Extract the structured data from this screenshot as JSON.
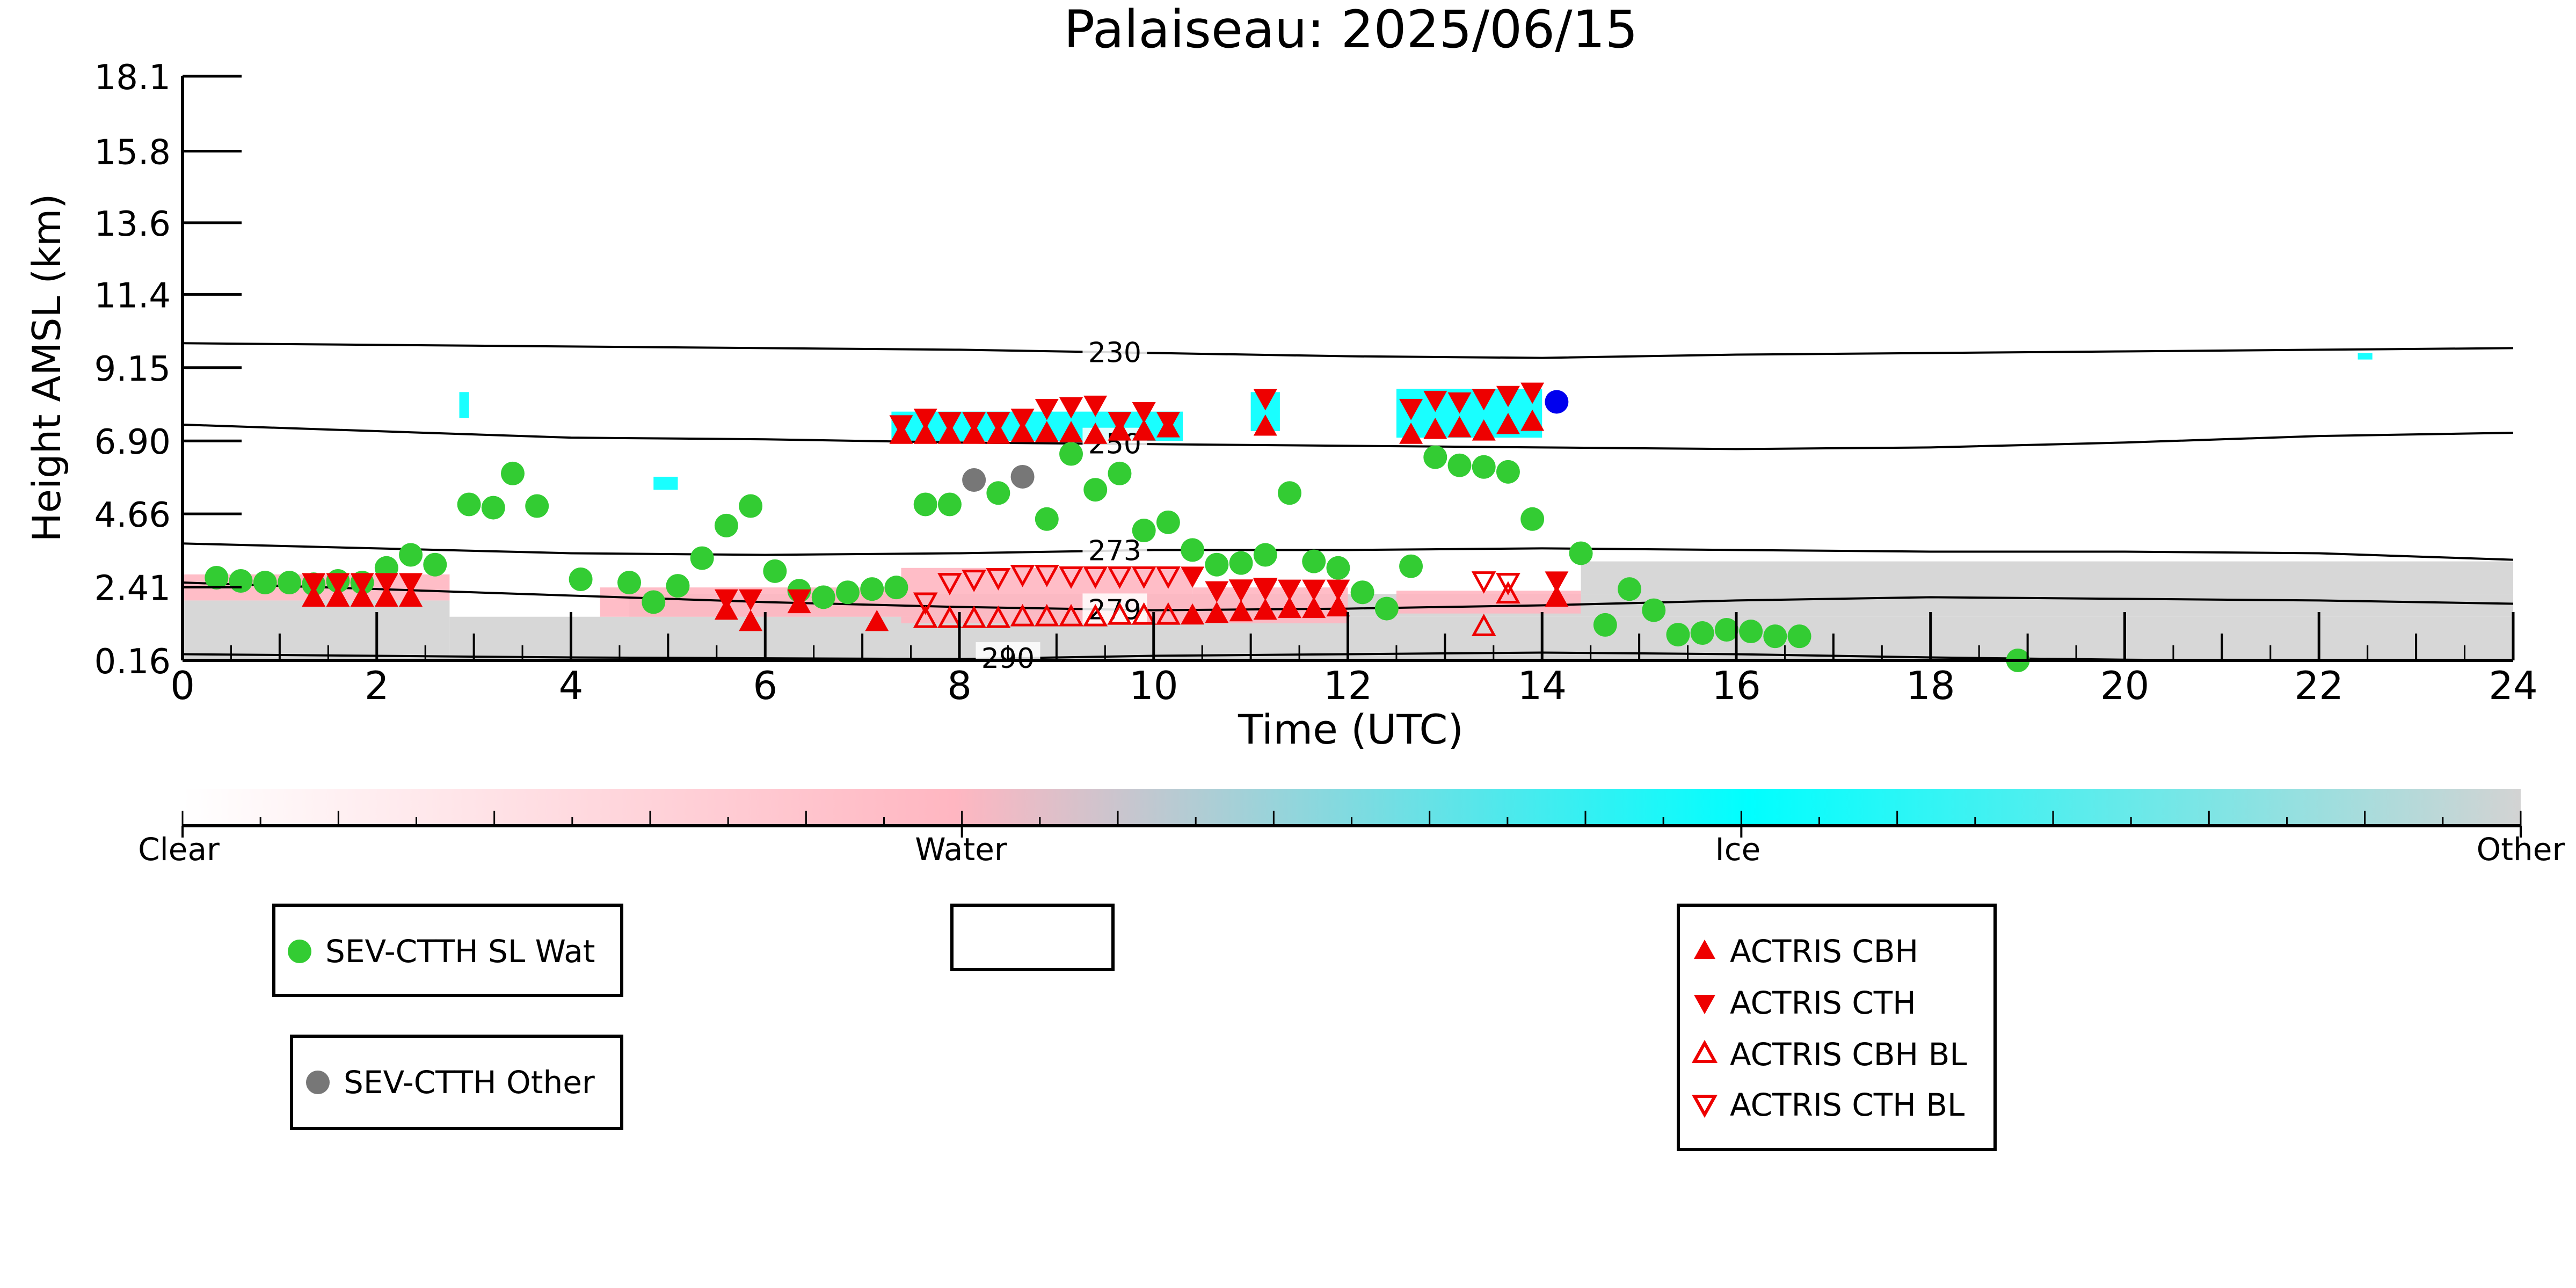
{
  "chart_data": {
    "type": "scatter",
    "title": "Palaiseau: 2025/06/15",
    "xlabel": "Time (UTC)",
    "ylabel": "Height AMSL (km)",
    "xlim": [
      0,
      24
    ],
    "ylim": [
      0.16,
      18.1
    ],
    "xticks": [
      0,
      2,
      4,
      6,
      8,
      10,
      12,
      14,
      16,
      18,
      20,
      22,
      24
    ],
    "yticks": [
      0.16,
      2.41,
      4.66,
      6.9,
      9.15,
      11.4,
      13.6,
      15.8,
      18.1
    ],
    "ytick_labels": [
      "0.16",
      "2.41",
      "4.66",
      "6.90",
      "9.15",
      "11.4",
      "13.6",
      "15.8",
      "18.1"
    ],
    "grid": false,
    "contours": [
      {
        "label": "230",
        "label_x": 9.6,
        "x": [
          0,
          4,
          8,
          10,
          12,
          14,
          16,
          18,
          20,
          22,
          24
        ],
        "y": [
          9.9,
          9.8,
          9.7,
          9.6,
          9.5,
          9.45,
          9.55,
          9.6,
          9.65,
          9.7,
          9.75
        ]
      },
      {
        "label": "250",
        "label_x": 9.6,
        "x": [
          0,
          2,
          4,
          6,
          8,
          10,
          12,
          14,
          16,
          18,
          20,
          22,
          24
        ],
        "y": [
          7.4,
          7.2,
          7.0,
          6.95,
          6.85,
          6.8,
          6.75,
          6.7,
          6.65,
          6.7,
          6.85,
          7.05,
          7.15
        ]
      },
      {
        "label": "273",
        "label_x": 9.6,
        "x": [
          0,
          2,
          4,
          6,
          8,
          10,
          12,
          14,
          16,
          18,
          20,
          22,
          24
        ],
        "y": [
          3.75,
          3.6,
          3.45,
          3.4,
          3.45,
          3.55,
          3.55,
          3.6,
          3.55,
          3.5,
          3.5,
          3.45,
          3.25
        ]
      },
      {
        "label": "279",
        "label_x": 9.6,
        "x": [
          0,
          2,
          4,
          6,
          8,
          10,
          12,
          14,
          16,
          18,
          20,
          22,
          24
        ],
        "y": [
          2.55,
          2.35,
          2.15,
          1.95,
          1.8,
          1.7,
          1.75,
          1.85,
          2.0,
          2.1,
          2.05,
          2.0,
          1.9
        ]
      },
      {
        "label": "290",
        "label_x": 8.5,
        "x": [
          0,
          4,
          8,
          10,
          12,
          14,
          16,
          18,
          20,
          21
        ],
        "y": [
          0.35,
          0.25,
          0.2,
          0.3,
          0.35,
          0.4,
          0.35,
          0.25,
          0.18,
          0.16
        ]
      }
    ],
    "series": [
      {
        "name": "SEV-CTTH SL Wat",
        "marker": "circle",
        "color": "#33cc33",
        "x": [
          0.35,
          0.6,
          0.85,
          1.1,
          1.35,
          1.6,
          1.85,
          2.1,
          2.35,
          2.6,
          2.95,
          3.2,
          3.4,
          3.65,
          4.1,
          4.6,
          4.85,
          5.1,
          5.35,
          5.6,
          5.85,
          6.1,
          6.35,
          6.6,
          6.85,
          7.1,
          7.35,
          7.65,
          7.9,
          8.4,
          8.9,
          9.15,
          9.4,
          9.65,
          9.9,
          10.15,
          10.4,
          10.65,
          10.9,
          11.15,
          11.4,
          11.65,
          11.9,
          12.15,
          12.4,
          12.65,
          12.9,
          13.15,
          13.4,
          13.65,
          13.9,
          14.4,
          14.65,
          14.9,
          15.15,
          15.4,
          15.65,
          15.9,
          16.15,
          16.4,
          16.65,
          18.9
        ],
        "y": [
          2.7,
          2.6,
          2.55,
          2.55,
          2.5,
          2.6,
          2.55,
          3.0,
          3.4,
          3.1,
          4.95,
          4.85,
          5.9,
          4.9,
          2.65,
          2.55,
          1.95,
          2.45,
          3.3,
          4.3,
          4.9,
          2.9,
          2.3,
          2.1,
          2.25,
          2.35,
          2.4,
          4.95,
          4.95,
          5.3,
          4.5,
          6.5,
          5.4,
          5.9,
          4.15,
          4.4,
          3.55,
          3.1,
          3.15,
          3.4,
          5.3,
          3.2,
          3.0,
          2.25,
          1.75,
          3.05,
          6.4,
          6.15,
          6.1,
          5.95,
          4.5,
          3.45,
          1.25,
          2.35,
          1.7,
          0.95,
          1.0,
          1.1,
          1.05,
          0.9,
          0.9,
          0.16
        ]
      },
      {
        "name": "SEV-CTTH Other",
        "marker": "circle",
        "color": "#777777",
        "x": [
          8.15,
          8.65
        ],
        "y": [
          5.7,
          5.8
        ]
      },
      {
        "name": "",
        "marker": "circle",
        "color": "#0000ee",
        "x": [
          14.15
        ],
        "y": [
          8.1
        ]
      },
      {
        "name": "ACTRIS CBH",
        "marker": "triangle-up",
        "color": "#ee0000",
        "x": [
          1.35,
          1.6,
          1.85,
          2.1,
          2.35,
          5.6,
          5.85,
          6.35,
          7.15,
          7.4,
          7.65,
          7.9,
          8.15,
          8.4,
          8.65,
          8.9,
          9.15,
          9.4,
          9.65,
          9.9,
          10.15,
          10.4,
          10.65,
          10.9,
          11.15,
          11.4,
          11.65,
          11.9,
          11.15,
          12.65,
          12.9,
          13.15,
          13.4,
          13.65,
          13.9,
          14.15
        ],
        "y": [
          2.1,
          2.1,
          2.1,
          2.1,
          2.1,
          1.7,
          1.35,
          1.9,
          1.35,
          7.1,
          7.1,
          7.1,
          7.1,
          7.1,
          7.15,
          7.15,
          7.15,
          7.1,
          7.2,
          7.2,
          7.3,
          1.55,
          1.6,
          1.65,
          1.7,
          1.75,
          1.75,
          1.8,
          7.35,
          7.1,
          7.25,
          7.3,
          7.2,
          7.4,
          7.5,
          2.1
        ]
      },
      {
        "name": "ACTRIS CTH",
        "marker": "triangle-down",
        "color": "#ee0000",
        "x": [
          1.35,
          1.6,
          1.85,
          2.1,
          2.35,
          5.6,
          5.85,
          6.35,
          7.4,
          7.65,
          7.9,
          8.15,
          8.4,
          8.65,
          8.9,
          9.15,
          9.4,
          9.65,
          9.9,
          10.15,
          10.4,
          10.65,
          10.9,
          11.15,
          11.4,
          11.65,
          11.9,
          11.15,
          12.65,
          12.9,
          13.15,
          13.4,
          13.65,
          13.9,
          14.15
        ],
        "y": [
          2.55,
          2.55,
          2.55,
          2.55,
          2.55,
          2.05,
          2.05,
          2.05,
          7.4,
          7.6,
          7.5,
          7.5,
          7.5,
          7.6,
          7.9,
          7.95,
          8.0,
          7.5,
          7.8,
          7.5,
          2.75,
          2.3,
          2.35,
          2.35,
          2.35,
          2.35,
          2.35,
          8.2,
          7.9,
          8.15,
          8.1,
          8.2,
          8.3,
          8.4,
          2.6
        ]
      },
      {
        "name": "ACTRIS CBH BL",
        "marker": "triangle-up-open",
        "color": "#ee0000",
        "x": [
          7.65,
          7.9,
          8.15,
          8.4,
          8.65,
          8.9,
          9.15,
          9.4,
          9.65,
          9.9,
          10.15,
          13.4,
          13.65
        ],
        "y": [
          1.45,
          1.45,
          1.45,
          1.45,
          1.5,
          1.5,
          1.5,
          1.5,
          1.55,
          1.55,
          1.55,
          1.2,
          2.2
        ]
      },
      {
        "name": "ACTRIS CTH BL",
        "marker": "triangle-down-open",
        "color": "#ee0000",
        "x": [
          7.65,
          7.9,
          8.15,
          8.4,
          8.65,
          8.9,
          9.15,
          9.4,
          9.65,
          9.9,
          10.15,
          10.9,
          11.15,
          13.4,
          13.65
        ],
        "y": [
          1.95,
          2.55,
          2.65,
          2.7,
          2.8,
          2.8,
          2.75,
          2.75,
          2.75,
          2.75,
          2.75,
          2.35,
          2.4,
          2.6,
          2.55
        ]
      }
    ],
    "legends": [
      {
        "entries": [
          {
            "label": "SEV-CTTH SL Wat",
            "marker": "circle",
            "color": "#33cc33"
          }
        ]
      },
      {
        "entries": [
          {
            "label": "SEV-CTTH Other",
            "marker": "circle",
            "color": "#777777"
          }
        ]
      },
      {
        "entries": []
      },
      {
        "entries": [
          {
            "label": "ACTRIS CBH",
            "marker": "triangle-up",
            "color": "#ee0000"
          },
          {
            "label": "ACTRIS CTH",
            "marker": "triangle-down",
            "color": "#ee0000"
          },
          {
            "label": "ACTRIS CBH BL",
            "marker": "triangle-up-open",
            "color": "#ee0000"
          },
          {
            "label": "ACTRIS CTH BL",
            "marker": "triangle-down-open",
            "color": "#ee0000"
          }
        ]
      }
    ],
    "colorbar": {
      "labels": [
        "Clear",
        "Water",
        "Ice",
        "Other"
      ],
      "colors": {
        "clear": "#ffffff",
        "water": "#ffb6c1",
        "ice": "#00ffff",
        "other": "#d3d3d3"
      }
    },
    "background_colors": {
      "water": "#ffb6c1",
      "ice": "#00ffff",
      "other": "#d3d3d3"
    }
  }
}
